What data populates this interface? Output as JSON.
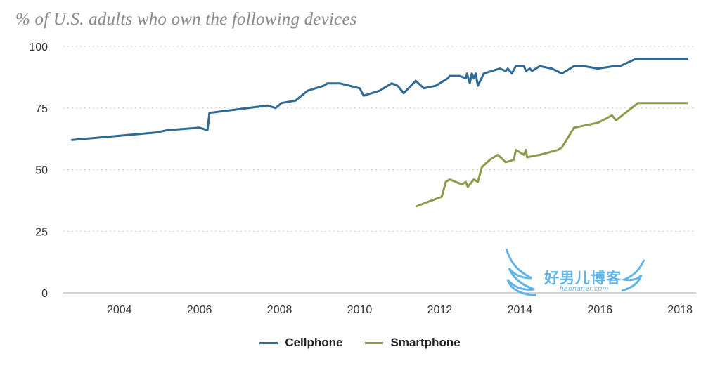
{
  "chart_data": {
    "type": "line",
    "title": "% of U.S. adults who own the following devices",
    "xlabel": "",
    "ylabel": "",
    "xlim": [
      2002.6,
      2018.4
    ],
    "ylim": [
      0,
      100
    ],
    "y_ticks": [
      0,
      25,
      50,
      75,
      100
    ],
    "x_ticks": [
      2004,
      2006,
      2008,
      2010,
      2012,
      2014,
      2016,
      2018
    ],
    "grid": "horizontal dotted",
    "legend_position": "bottom-center",
    "series": [
      {
        "name": "Cellphone",
        "color": "#2e6a96",
        "points": [
          [
            2002.8,
            62
          ],
          [
            2004.9,
            65
          ],
          [
            2005.2,
            66
          ],
          [
            2006.0,
            67
          ],
          [
            2006.2,
            66
          ],
          [
            2006.25,
            73
          ],
          [
            2007.7,
            76
          ],
          [
            2007.9,
            75
          ],
          [
            2008.05,
            77
          ],
          [
            2008.4,
            78
          ],
          [
            2008.7,
            82
          ],
          [
            2009.1,
            84
          ],
          [
            2009.2,
            85
          ],
          [
            2009.5,
            85
          ],
          [
            2010.0,
            83
          ],
          [
            2010.1,
            80
          ],
          [
            2010.5,
            82
          ],
          [
            2010.8,
            85
          ],
          [
            2010.95,
            84
          ],
          [
            2011.1,
            81
          ],
          [
            2011.4,
            86
          ],
          [
            2011.6,
            83
          ],
          [
            2011.9,
            84
          ],
          [
            2012.2,
            87
          ],
          [
            2012.25,
            88
          ],
          [
            2012.5,
            88
          ],
          [
            2012.65,
            87
          ],
          [
            2012.68,
            89
          ],
          [
            2012.75,
            85
          ],
          [
            2012.8,
            89
          ],
          [
            2012.85,
            87
          ],
          [
            2012.9,
            89
          ],
          [
            2012.95,
            84
          ],
          [
            2013.1,
            89
          ],
          [
            2013.5,
            91
          ],
          [
            2013.65,
            90
          ],
          [
            2013.7,
            91
          ],
          [
            2013.8,
            89
          ],
          [
            2013.9,
            92
          ],
          [
            2014.1,
            92
          ],
          [
            2014.15,
            90
          ],
          [
            2014.25,
            91
          ],
          [
            2014.3,
            90
          ],
          [
            2014.5,
            92
          ],
          [
            2014.8,
            91
          ],
          [
            2015.05,
            89
          ],
          [
            2015.35,
            92
          ],
          [
            2015.6,
            92
          ],
          [
            2015.95,
            91
          ],
          [
            2016.35,
            92
          ],
          [
            2016.5,
            92
          ],
          [
            2016.9,
            95
          ],
          [
            2018.2,
            95
          ]
        ]
      },
      {
        "name": "Smartphone",
        "color": "#8c9a4a",
        "points": [
          [
            2011.4,
            35
          ],
          [
            2012.05,
            39
          ],
          [
            2012.15,
            45
          ],
          [
            2012.25,
            46
          ],
          [
            2012.55,
            44
          ],
          [
            2012.65,
            45
          ],
          [
            2012.7,
            43
          ],
          [
            2012.85,
            46
          ],
          [
            2012.95,
            45
          ],
          [
            2013.05,
            51
          ],
          [
            2013.25,
            54
          ],
          [
            2013.45,
            56
          ],
          [
            2013.65,
            53
          ],
          [
            2013.85,
            54
          ],
          [
            2013.9,
            58
          ],
          [
            2014.1,
            56
          ],
          [
            2014.15,
            58
          ],
          [
            2014.18,
            55
          ],
          [
            2014.5,
            56
          ],
          [
            2014.95,
            58
          ],
          [
            2015.05,
            59
          ],
          [
            2015.35,
            67
          ],
          [
            2015.65,
            68
          ],
          [
            2015.95,
            69
          ],
          [
            2016.3,
            72
          ],
          [
            2016.4,
            70
          ],
          [
            2016.95,
            77
          ],
          [
            2018.2,
            77
          ]
        ]
      }
    ]
  },
  "legend": {
    "items": [
      {
        "label": "Cellphone",
        "color": "#2e6a96"
      },
      {
        "label": "Smartphone",
        "color": "#8c9a4a"
      }
    ]
  },
  "watermark": {
    "text": "好男儿博客",
    "subtext": "haonaner.com"
  }
}
